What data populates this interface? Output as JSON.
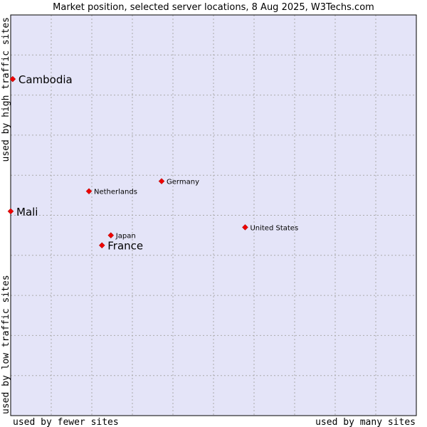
{
  "chart_data": {
    "type": "scatter",
    "title": "Market position, selected server locations, 8 Aug 2025, W3Techs.com",
    "xlabel_left": "used by fewer sites",
    "xlabel_right": "used by many sites",
    "ylabel_top": "used by high traffic sites",
    "ylabel_bottom": "used by low traffic sites",
    "xlim": [
      0,
      10
    ],
    "ylim": [
      0,
      10
    ],
    "grid": true,
    "colors": {
      "plot_background": "#e4e4f8",
      "grid": "#aaaaaa",
      "marker": "#ee0000",
      "marker_outline": "#990000"
    },
    "points": [
      {
        "name": "Cambodia",
        "x": 0.05,
        "y": 8.4,
        "highlight": true
      },
      {
        "name": "Mali",
        "x": 0.0,
        "y": 5.1,
        "highlight": true
      },
      {
        "name": "France",
        "x": 2.25,
        "y": 4.25,
        "highlight": true
      },
      {
        "name": "Japan",
        "x": 2.47,
        "y": 4.5,
        "highlight": false
      },
      {
        "name": "Netherlands",
        "x": 1.93,
        "y": 5.6,
        "highlight": false
      },
      {
        "name": "Germany",
        "x": 3.72,
        "y": 5.85,
        "highlight": false
      },
      {
        "name": "United States",
        "x": 5.78,
        "y": 4.7,
        "highlight": false
      }
    ]
  }
}
